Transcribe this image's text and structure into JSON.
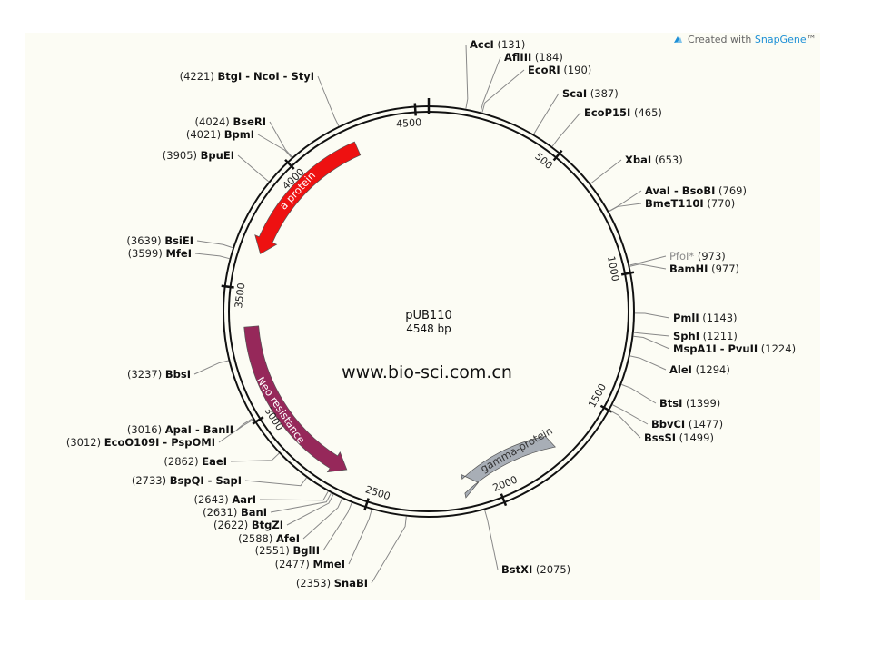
{
  "branding": {
    "prefix": "Created with ",
    "name": "SnapGene",
    "suffix": "™",
    "accent_color": "#1c8fd6",
    "icon": "snapgene-logo-icon"
  },
  "plasmid": {
    "name": "pUB110",
    "length_label": "4548 bp",
    "length": 4548
  },
  "watermark": "www.bio-sci.com.cn",
  "ticks": [
    {
      "position": 500,
      "label": "500"
    },
    {
      "position": 1000,
      "label": "1000"
    },
    {
      "position": 1500,
      "label": "1500"
    },
    {
      "position": 2000,
      "label": "2000"
    },
    {
      "position": 2500,
      "label": "2500"
    },
    {
      "position": 3000,
      "label": "3000"
    },
    {
      "position": 3500,
      "label": "3500"
    },
    {
      "position": 4000,
      "label": "4000"
    },
    {
      "position": 4500,
      "label": "4500"
    }
  ],
  "features": [
    {
      "name": "a protein",
      "start": 4250,
      "end": 3650,
      "direction": "ccw",
      "color": "#ee1111"
    },
    {
      "name": "Neo resistance",
      "start": 3350,
      "end": 2620,
      "direction": "ccw",
      "color": "#96285a"
    },
    {
      "name": "gamma-protein",
      "start": 1730,
      "end": 2070,
      "direction": "ccw",
      "color": "#a8aeb6"
    }
  ],
  "sites": [
    {
      "name": "AccI",
      "position": 131,
      "pos_label": "(131)"
    },
    {
      "name": "AflIII",
      "position": 184,
      "pos_label": "(184)"
    },
    {
      "name": "EcoRI",
      "position": 190,
      "pos_label": "(190)"
    },
    {
      "name": "ScaI",
      "position": 387,
      "pos_label": "(387)"
    },
    {
      "name": "EcoP15I",
      "position": 465,
      "pos_label": "(465)"
    },
    {
      "name": "XbaI",
      "position": 653,
      "pos_label": "(653)"
    },
    {
      "name": "AvaI - BsoBI",
      "position": 769,
      "pos_label": "(769)"
    },
    {
      "name": "BmeT110I",
      "position": 770,
      "pos_label": "(770)"
    },
    {
      "name": "PfoI*",
      "position": 973,
      "pos_label": "(973)",
      "dim": true
    },
    {
      "name": "BamHI",
      "position": 977,
      "pos_label": "(977)"
    },
    {
      "name": "PmlI",
      "position": 1143,
      "pos_label": "(1143)"
    },
    {
      "name": "SphI",
      "position": 1211,
      "pos_label": "(1211)"
    },
    {
      "name": "MspA1I - PvuII",
      "position": 1224,
      "pos_label": "(1224)"
    },
    {
      "name": "AleI",
      "position": 1294,
      "pos_label": "(1294)"
    },
    {
      "name": "BtsI",
      "position": 1399,
      "pos_label": "(1399)"
    },
    {
      "name": "BbvCI",
      "position": 1477,
      "pos_label": "(1477)"
    },
    {
      "name": "BssSI",
      "position": 1499,
      "pos_label": "(1499)"
    },
    {
      "name": "BstXI",
      "position": 2075,
      "pos_label": "(2075)"
    },
    {
      "name": "SnaBI",
      "position": 2353,
      "pos_label": "(2353)"
    },
    {
      "name": "MmeI",
      "position": 2477,
      "pos_label": "(2477)"
    },
    {
      "name": "BglII",
      "position": 2551,
      "pos_label": "(2551)"
    },
    {
      "name": "AfeI",
      "position": 2588,
      "pos_label": "(2588)"
    },
    {
      "name": "BtgZI",
      "position": 2622,
      "pos_label": "(2622)"
    },
    {
      "name": "BanI",
      "position": 2631,
      "pos_label": "(2631)"
    },
    {
      "name": "AarI",
      "position": 2643,
      "pos_label": "(2643)"
    },
    {
      "name": "BspQI - SapI",
      "position": 2733,
      "pos_label": "(2733)"
    },
    {
      "name": "EaeI",
      "position": 2862,
      "pos_label": "(2862)"
    },
    {
      "name": "EcoO109I - PspOMI",
      "position": 3012,
      "pos_label": "(3012)"
    },
    {
      "name": "ApaI - BanII",
      "position": 3016,
      "pos_label": "(3016)"
    },
    {
      "name": "BbsI",
      "position": 3237,
      "pos_label": "(3237)"
    },
    {
      "name": "MfeI",
      "position": 3599,
      "pos_label": "(3599)"
    },
    {
      "name": "BsiEI",
      "position": 3639,
      "pos_label": "(3639)"
    },
    {
      "name": "BpuEI",
      "position": 3905,
      "pos_label": "(3905)"
    },
    {
      "name": "BpmI",
      "position": 4021,
      "pos_label": "(4021)"
    },
    {
      "name": "BseRI",
      "position": 4024,
      "pos_label": "(4024)"
    },
    {
      "name": "BtgI - NcoI - StyI",
      "position": 4221,
      "pos_label": "(4221)"
    }
  ]
}
